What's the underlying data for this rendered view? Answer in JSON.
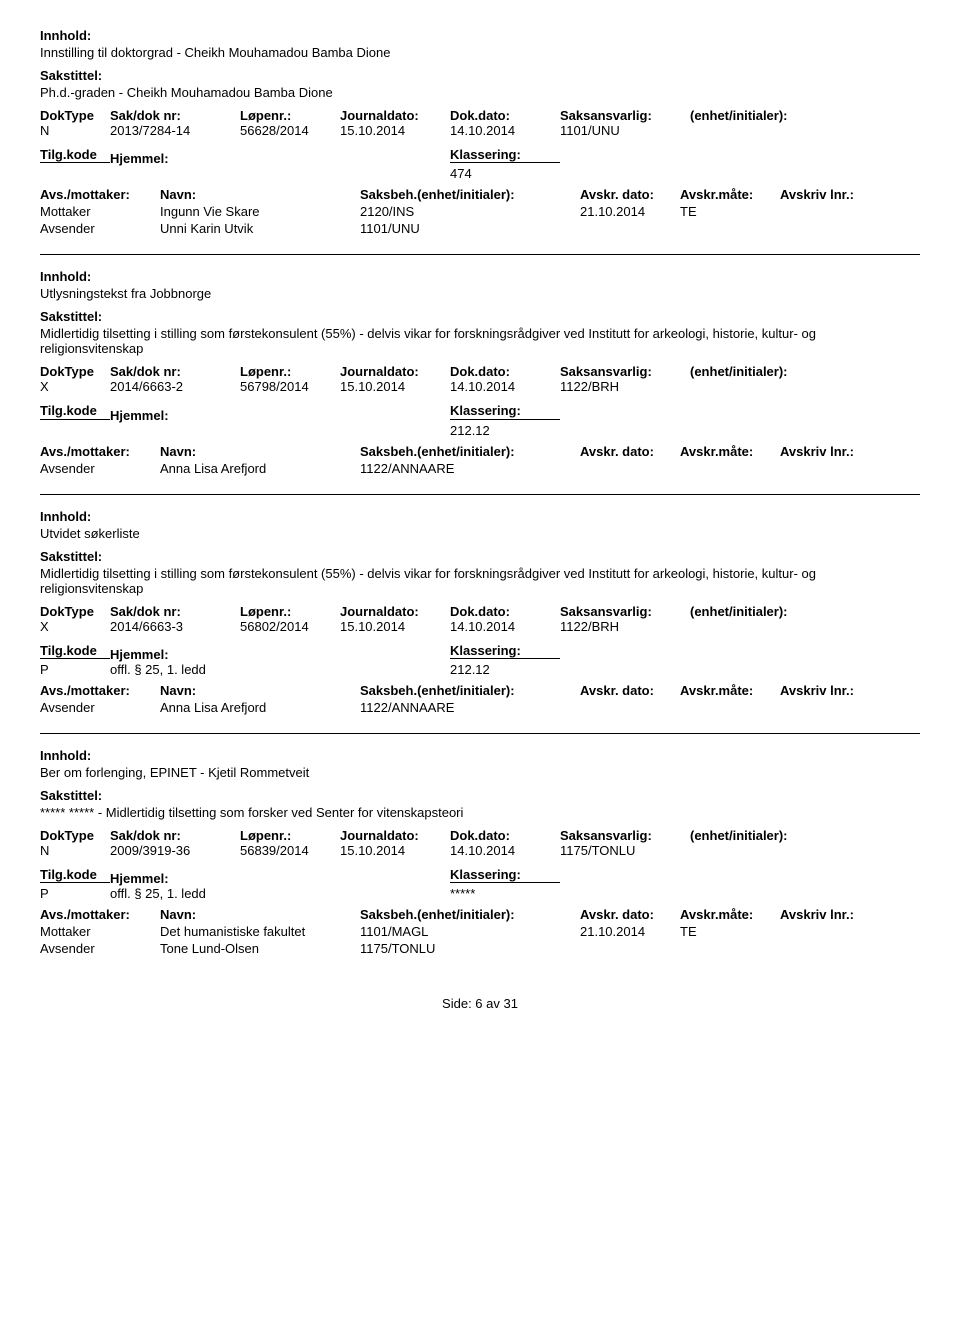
{
  "labels": {
    "innhold": "Innhold:",
    "sakstittel": "Sakstittel:",
    "doktype": "DokType",
    "sakdok": "Sak/dok nr:",
    "lopenr": "Løpenr.:",
    "journaldato": "Journaldato:",
    "dokdato": "Dok.dato:",
    "saksansvarlig": "Saksansvarlig:",
    "enhet": "(enhet/initialer):",
    "tilgkode": "Tilg.kode",
    "hjemmel": "Hjemmel:",
    "klassering": "Klassering:",
    "avsmottaker": "Avs./mottaker:",
    "navn": "Navn:",
    "saksbeh": "Saksbeh.(enhet/initialer):",
    "avskrdato": "Avskr. dato:",
    "avskrmate": "Avskr.måte:",
    "avskrivlnr": "Avskriv lnr.:",
    "mottaker": "Mottaker",
    "avsender": "Avsender"
  },
  "footer": {
    "text": "Side: 6 av 31"
  },
  "records": [
    {
      "innhold": "Innstilling til doktorgrad - Cheikh Mouhamadou Bamba Dione",
      "sakstittel": "Ph.d.-graden - Cheikh Mouhamadou Bamba Dione",
      "doktype": "N",
      "sakdok": "2013/7284-14",
      "lopenr": "56628/2014",
      "journaldato": "15.10.2014",
      "dokdato": "14.10.2014",
      "saksansvarlig": "1101/UNU",
      "enhet": "",
      "tilgkode": "",
      "hjemmel": "",
      "klassering": "474",
      "parties": [
        {
          "role": "Mottaker",
          "name": "Ingunn Vie Skare",
          "unit": "2120/INS",
          "date": "21.10.2014",
          "mate": "TE"
        },
        {
          "role": "Avsender",
          "name": "Unni Karin Utvik",
          "unit": "1101/UNU",
          "date": "",
          "mate": ""
        }
      ]
    },
    {
      "innhold": "Utlysningstekst fra Jobbnorge",
      "sakstittel": "Midlertidig tilsetting i stilling som førstekonsulent (55%) - delvis vikar for forskningsrådgiver ved Institutt for arkeologi, historie, kultur- og religionsvitenskap",
      "doktype": "X",
      "sakdok": "2014/6663-2",
      "lopenr": "56798/2014",
      "journaldato": "15.10.2014",
      "dokdato": "14.10.2014",
      "saksansvarlig": "1122/BRH",
      "enhet": "",
      "tilgkode": "",
      "hjemmel": "",
      "klassering": "212.12",
      "parties": [
        {
          "role": "Avsender",
          "name": "Anna Lisa Arefjord",
          "unit": "1122/ANNAARE",
          "date": "",
          "mate": ""
        }
      ]
    },
    {
      "innhold": "Utvidet søkerliste",
      "sakstittel": "Midlertidig tilsetting i stilling som førstekonsulent (55%) - delvis vikar for forskningsrådgiver ved Institutt for arkeologi, historie, kultur- og religionsvitenskap",
      "doktype": "X",
      "sakdok": "2014/6663-3",
      "lopenr": "56802/2014",
      "journaldato": "15.10.2014",
      "dokdato": "14.10.2014",
      "saksansvarlig": "1122/BRH",
      "enhet": "",
      "tilgkode": "P",
      "hjemmel": "offl. § 25, 1. ledd",
      "klassering": "212.12",
      "parties": [
        {
          "role": "Avsender",
          "name": "Anna Lisa Arefjord",
          "unit": "1122/ANNAARE",
          "date": "",
          "mate": ""
        }
      ]
    },
    {
      "innhold": "Ber om forlenging, EPINET - Kjetil Rommetveit",
      "sakstittel": "***** ***** - Midlertidig tilsetting som forsker ved Senter for vitenskapsteori",
      "doktype": "N",
      "sakdok": "2009/3919-36",
      "lopenr": "56839/2014",
      "journaldato": "15.10.2014",
      "dokdato": "14.10.2014",
      "saksansvarlig": "1175/TONLU",
      "enhet": "",
      "tilgkode": "P",
      "hjemmel": "offl. § 25, 1. ledd",
      "klassering": "*****",
      "parties": [
        {
          "role": "Mottaker",
          "name": "Det humanistiske fakultet",
          "unit": "1101/MAGL",
          "date": "21.10.2014",
          "mate": "TE"
        },
        {
          "role": "Avsender",
          "name": "Tone Lund-Olsen",
          "unit": "1175/TONLU",
          "date": "",
          "mate": ""
        }
      ]
    }
  ]
}
